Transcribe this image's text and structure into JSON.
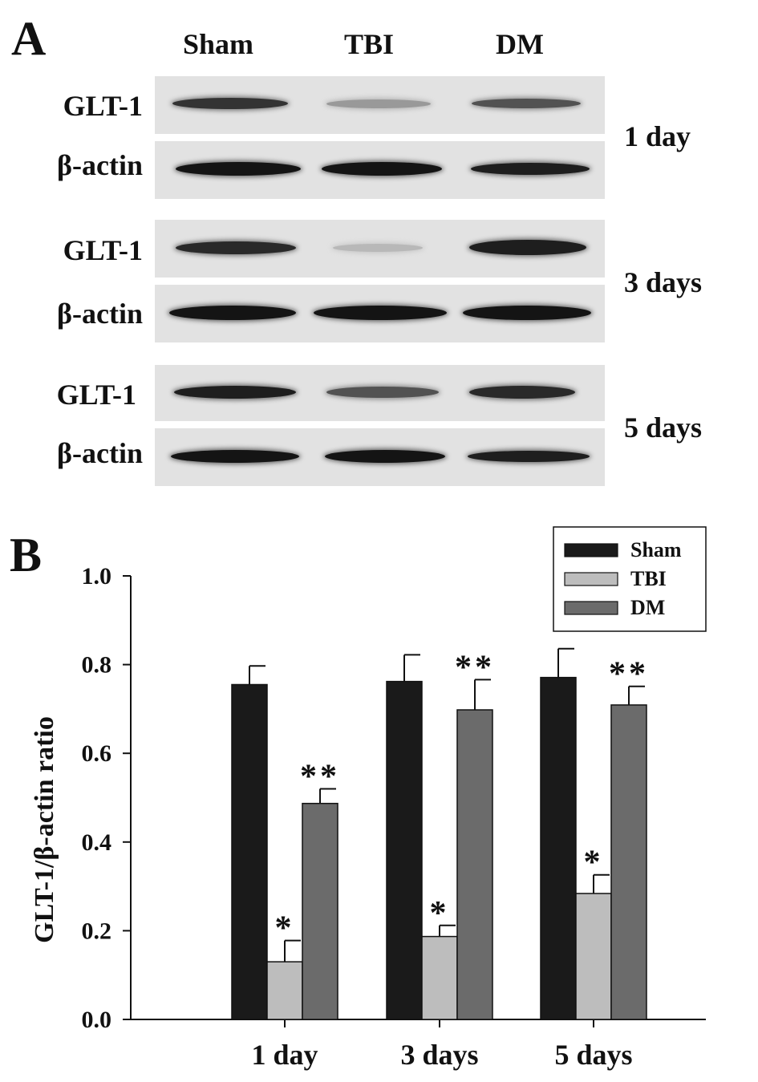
{
  "panel_a": {
    "letter": "A",
    "lanes": [
      "Sham",
      "TBI",
      "DM"
    ],
    "blots": [
      {
        "day": "1 day",
        "rows": [
          {
            "label": "GLT-1",
            "intensity": [
              0.85,
              0.35,
              0.7
            ]
          },
          {
            "label": "β-actin",
            "intensity": [
              1.0,
              1.0,
              0.95
            ]
          }
        ]
      },
      {
        "day": "3 days",
        "rows": [
          {
            "label": "GLT-1",
            "intensity": [
              0.9,
              0.2,
              0.95
            ]
          },
          {
            "label": "β-actin",
            "intensity": [
              1.0,
              1.0,
              1.0
            ]
          }
        ]
      },
      {
        "day": "5 days",
        "rows": [
          {
            "label": "GLT-1",
            "intensity": [
              0.95,
              0.7,
              0.9
            ]
          },
          {
            "label": "β-actin",
            "intensity": [
              1.0,
              1.0,
              0.95
            ]
          }
        ]
      }
    ]
  },
  "panel_b": {
    "letter": "B"
  },
  "chart_data": {
    "type": "bar",
    "categories": [
      "1 day",
      "3 days",
      "5 days"
    ],
    "series": [
      {
        "name": "Sham",
        "color": "#1a1a1a",
        "values": [
          0.755,
          0.762,
          0.771
        ],
        "errors": [
          0.042,
          0.06,
          0.065
        ],
        "marks": [
          "",
          "",
          ""
        ]
      },
      {
        "name": "TBI",
        "color": "#bdbdbd",
        "values": [
          0.13,
          0.187,
          0.284
        ],
        "errors": [
          0.048,
          0.025,
          0.042
        ],
        "marks": [
          "*",
          "*",
          "*"
        ]
      },
      {
        "name": "DM",
        "color": "#6b6b6b",
        "values": [
          0.487,
          0.698,
          0.709
        ],
        "errors": [
          0.033,
          0.068,
          0.042
        ],
        "marks": [
          "**",
          "**",
          "**"
        ]
      }
    ],
    "ylabel": "GLT-1/β-actin ratio",
    "xlabel": "",
    "ylim": [
      0,
      1.0
    ],
    "yticks": [
      "0.0",
      "0.2",
      "0.4",
      "0.6",
      "0.8",
      "1.0"
    ],
    "legend_position": "top-right",
    "grid": false
  }
}
